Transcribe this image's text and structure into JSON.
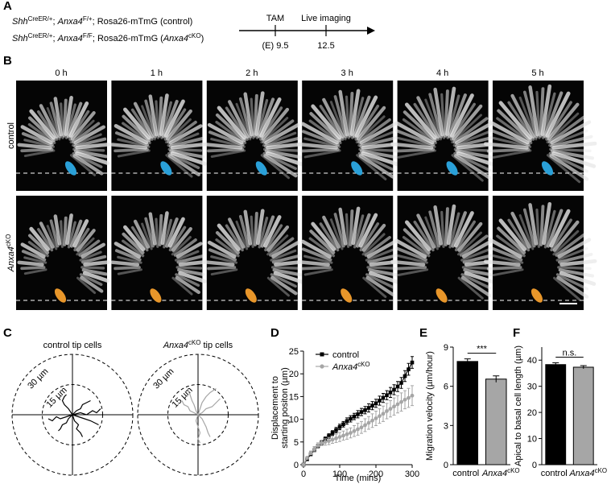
{
  "panel_labels": [
    "A",
    "B",
    "C",
    "D",
    "E",
    "F"
  ],
  "panel_a": {
    "genotypes": [
      [
        {
          "text": "Shh",
          "style": "italic"
        },
        {
          "text": "CreER/+",
          "style": "sup"
        },
        {
          "text": "; ",
          "style": "normal"
        },
        {
          "text": "Anxa4",
          "style": "italic"
        },
        {
          "text": "F/+",
          "style": "sup"
        },
        {
          "text": "; ",
          "style": "normal"
        },
        {
          "text": "Rosa26",
          "style": "normal"
        },
        {
          "text": "-mTmG (control)",
          "style": "normal"
        }
      ],
      [
        {
          "text": "Shh",
          "style": "italic"
        },
        {
          "text": "CreER/+",
          "style": "sup"
        },
        {
          "text": "; ",
          "style": "normal"
        },
        {
          "text": "Anxa4",
          "style": "italic"
        },
        {
          "text": "F/F",
          "style": "sup"
        },
        {
          "text": "; ",
          "style": "normal"
        },
        {
          "text": "Rosa26",
          "style": "normal"
        },
        {
          "text": "-mTmG (",
          "style": "normal"
        },
        {
          "text": "Anxa4",
          "style": "italic"
        },
        {
          "text": "cKO",
          "style": "sup"
        },
        {
          "text": ")",
          "style": "normal"
        }
      ]
    ],
    "timeline": {
      "events": [
        "TAM",
        "Live imaging"
      ],
      "stages": [
        "(E) 9.5",
        "12.5"
      ]
    }
  },
  "panel_b": {
    "timepoints": [
      "0 h",
      "1 h",
      "2 h",
      "3 h",
      "4 h",
      "5 h"
    ],
    "rows": [
      "control",
      "Anxa4cKO"
    ]
  },
  "panel_c": {
    "rings": [
      {
        "value": 15,
        "label": "15 µm"
      },
      {
        "value": 30,
        "label": "30 µm"
      }
    ],
    "plots": [
      {
        "title": "control tip cells",
        "color": "#000000",
        "tracks": [
          {
            "x": [
              0,
              -3,
              -6,
              -8,
              -10,
              -12
            ],
            "y": [
              0,
              -1,
              -2,
              -1,
              -3,
              -2
            ]
          },
          {
            "x": [
              0,
              3,
              6,
              9,
              11,
              13
            ],
            "y": [
              0,
              -1,
              -2,
              -3,
              -4,
              -5
            ]
          },
          {
            "x": [
              0,
              -2,
              -3,
              -5,
              -6,
              -7
            ],
            "y": [
              0,
              -2,
              -4,
              -5,
              -7,
              -8
            ]
          },
          {
            "x": [
              0,
              2,
              4,
              5,
              7,
              9
            ],
            "y": [
              0,
              2,
              3,
              5,
              6,
              7
            ]
          },
          {
            "x": [
              0,
              -2,
              -4,
              -5,
              -4,
              -3
            ],
            "y": [
              0,
              3,
              5,
              7,
              9,
              10
            ]
          },
          {
            "x": [
              0,
              4,
              7,
              10,
              12,
              14
            ],
            "y": [
              0,
              1,
              0,
              2,
              1,
              3
            ]
          },
          {
            "x": [
              0,
              1,
              3,
              2,
              4,
              5
            ],
            "y": [
              0,
              -3,
              -5,
              -7,
              -9,
              -11
            ]
          }
        ]
      },
      {
        "title": "Anxa4cKO tip cells",
        "color": "#a6a6a6",
        "tracks": [
          {
            "x": [
              0,
              1,
              2,
              4,
              6,
              9
            ],
            "y": [
              0,
              3,
              6,
              9,
              11,
              13
            ]
          },
          {
            "x": [
              0,
              -1,
              -2,
              -3,
              -4,
              -5
            ],
            "y": [
              0,
              2,
              5,
              7,
              10,
              12
            ]
          },
          {
            "x": [
              0,
              2,
              4,
              7,
              9,
              11
            ],
            "y": [
              0,
              1,
              3,
              4,
              6,
              8
            ]
          },
          {
            "x": [
              0,
              -1,
              0,
              1,
              0,
              1
            ],
            "y": [
              0,
              -3,
              -6,
              -9,
              -12,
              -14
            ]
          },
          {
            "x": [
              0,
              2,
              3,
              4,
              5,
              6
            ],
            "y": [
              0,
              -2,
              -4,
              -6,
              -9,
              -11
            ]
          },
          {
            "x": [
              0,
              -2,
              -4,
              -5,
              -7,
              -8
            ],
            "y": [
              0,
              1,
              2,
              4,
              5,
              7
            ]
          }
        ]
      }
    ]
  },
  "chart_data": [
    {
      "type": "line",
      "xlabel": "Time (mins)",
      "ylabel": [
        "Displacement to",
        "starting positon (µm)"
      ],
      "x": [
        0,
        10,
        20,
        30,
        40,
        50,
        60,
        70,
        80,
        90,
        100,
        110,
        120,
        130,
        140,
        150,
        160,
        170,
        180,
        190,
        200,
        210,
        220,
        230,
        240,
        250,
        260,
        270,
        280,
        290,
        300
      ],
      "xlim": [
        0,
        300
      ],
      "xticks": [
        0,
        100,
        200,
        300
      ],
      "ylim": [
        0,
        25
      ],
      "yticks": [
        0,
        5,
        10,
        15,
        20,
        25
      ],
      "series": [
        {
          "name": "control",
          "color": "#000000",
          "marker": "square",
          "values": [
            0,
            1.2,
            2.3,
            3.2,
            4.1,
            4.8,
            5.6,
            6.3,
            7.0,
            7.6,
            8.3,
            8.9,
            9.6,
            10.1,
            10.6,
            11.1,
            11.6,
            12.0,
            12.5,
            13.0,
            13.5,
            14.1,
            14.7,
            15.3,
            15.9,
            16.5,
            17.2,
            18.0,
            19.5,
            21.0,
            22.5
          ],
          "errors": [
            0.1,
            0.2,
            0.3,
            0.3,
            0.4,
            0.4,
            0.5,
            0.5,
            0.5,
            0.6,
            0.6,
            0.6,
            0.7,
            0.7,
            0.7,
            0.8,
            0.8,
            0.8,
            0.9,
            0.9,
            0.9,
            1.0,
            1.0,
            1.0,
            1.1,
            1.1,
            1.1,
            1.2,
            1.2,
            1.3,
            1.3
          ]
        },
        {
          "name": "Anxa4cKO",
          "color": "#a6a6a6",
          "marker": "circle",
          "values": [
            0,
            1.5,
            2.6,
            3.5,
            4.2,
            4.8,
            5.0,
            5.2,
            5.5,
            5.8,
            6.1,
            6.4,
            6.7,
            7.0,
            7.4,
            7.8,
            8.2,
            8.7,
            9.2,
            9.7,
            10.2,
            10.7,
            11.2,
            11.8,
            12.3,
            12.8,
            13.3,
            13.8,
            14.3,
            14.7,
            15.2
          ],
          "errors": [
            0.1,
            0.3,
            0.4,
            0.5,
            0.6,
            0.6,
            0.7,
            0.8,
            0.8,
            0.9,
            1.0,
            1.0,
            1.1,
            1.1,
            1.2,
            1.3,
            1.3,
            1.4,
            1.4,
            1.5,
            1.6,
            1.6,
            1.7,
            1.7,
            1.8,
            1.9,
            1.9,
            2.0,
            2.0,
            2.1,
            2.2
          ]
        }
      ]
    },
    {
      "type": "bar",
      "ylabel": "Migration velocity (µm/hour)",
      "categories": [
        "control",
        "Anxa4cKO"
      ],
      "values": [
        7.9,
        6.55
      ],
      "errors": [
        0.2,
        0.25
      ],
      "colors": [
        "#000000",
        "#a6a6a6"
      ],
      "ylim": [
        0,
        9
      ],
      "yticks": [
        0,
        3,
        6,
        9
      ],
      "annotation": "***"
    },
    {
      "type": "bar",
      "ylabel": "Apical to basal cell length (µm)",
      "categories": [
        "control",
        "Anxa4cKO"
      ],
      "values": [
        38.3,
        37.3
      ],
      "errors": [
        0.7,
        0.6
      ],
      "colors": [
        "#000000",
        "#a6a6a6"
      ],
      "ylim": [
        0,
        45
      ],
      "yticks": [
        0,
        10,
        20,
        30,
        40
      ],
      "annotation": "n.s."
    }
  ]
}
